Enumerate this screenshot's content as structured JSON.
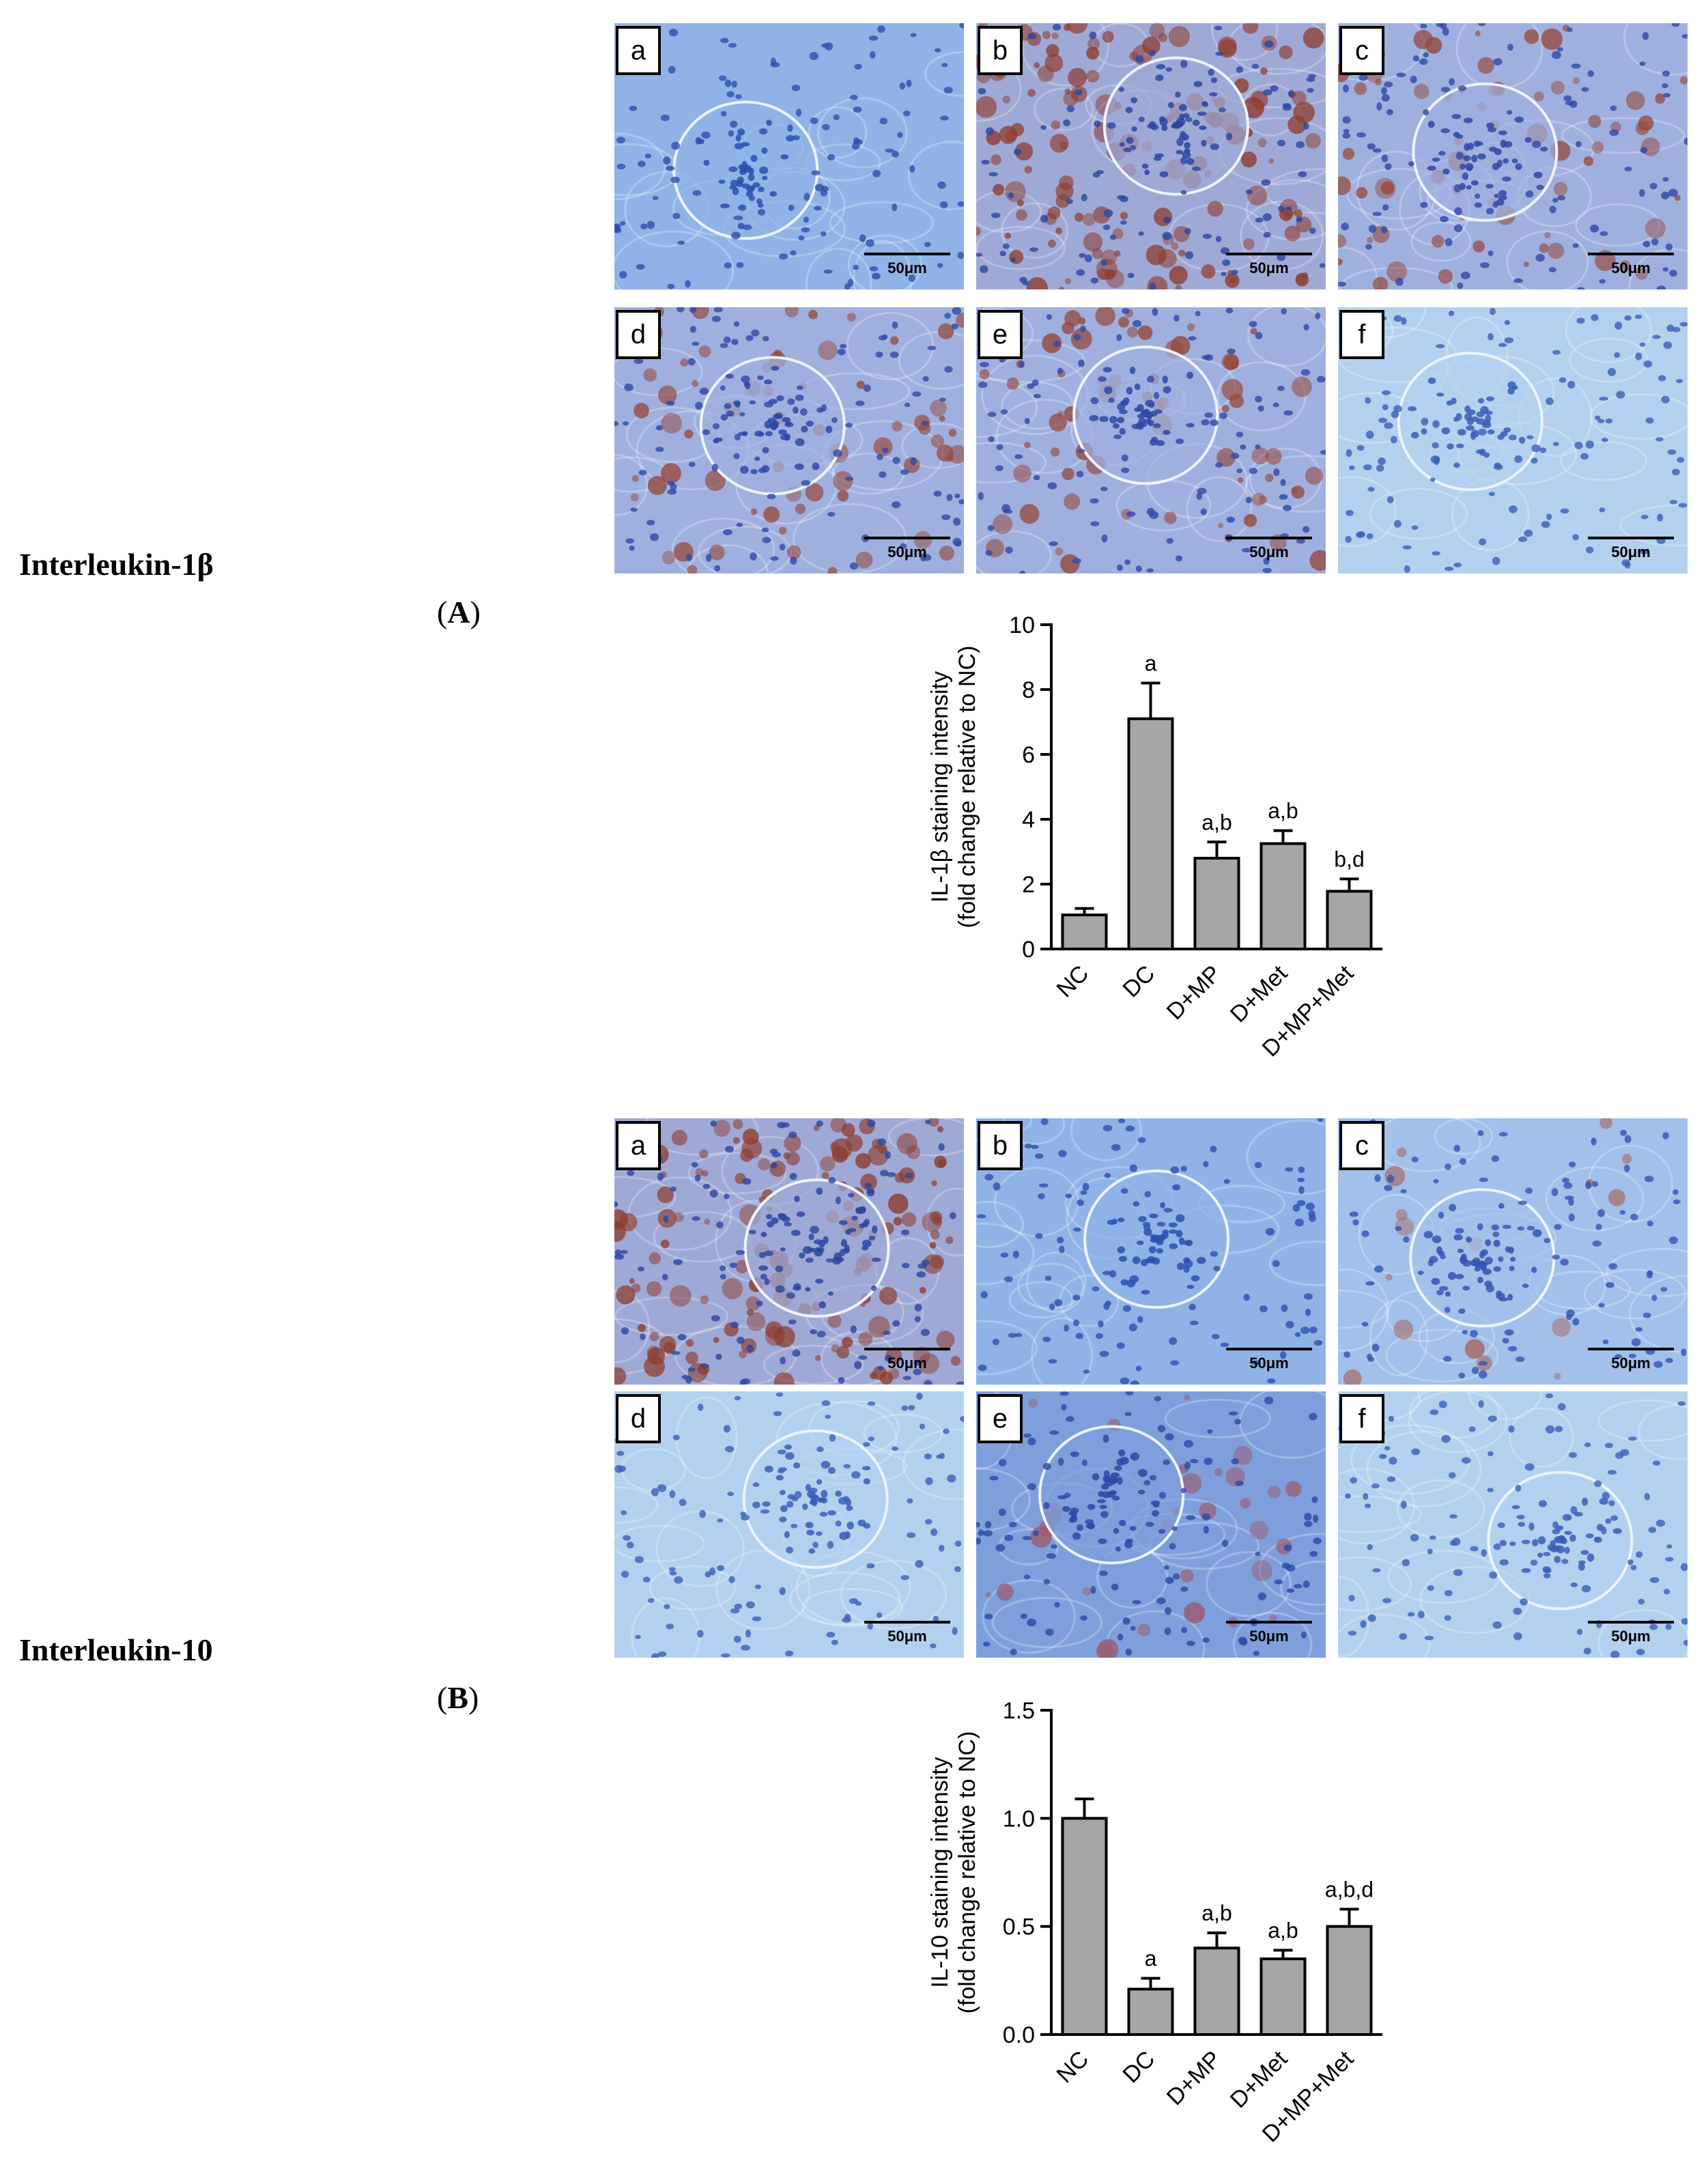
{
  "figures": [
    {
      "row_title": "Interleukin-1β",
      "panel_label_letter": "A",
      "micrographs": [
        {
          "letter": "a",
          "scale": "50μm",
          "tone": "blue"
        },
        {
          "letter": "b",
          "scale": "50μm",
          "tone": "brown-heavy"
        },
        {
          "letter": "c",
          "scale": "50μm",
          "tone": "brown-medium"
        },
        {
          "letter": "d",
          "scale": "50μm",
          "tone": "brown-medium"
        },
        {
          "letter": "e",
          "scale": "50μm",
          "tone": "brown-medium"
        },
        {
          "letter": "f",
          "scale": "50μm",
          "tone": "pale-blue"
        }
      ],
      "chart_data": {
        "type": "bar",
        "ylabel_line1": "IL-1β staining intensity",
        "ylabel_line2": "(fold change relative to NC)",
        "categories": [
          "NC",
          "DC",
          "D+MP",
          "D+Met",
          "D+MP+Met"
        ],
        "values": [
          1.05,
          7.1,
          2.8,
          3.25,
          1.78
        ],
        "errors": [
          0.2,
          1.1,
          0.5,
          0.4,
          0.38
        ],
        "annotations": [
          "",
          "a",
          "a,b",
          "a,b",
          "b,d"
        ],
        "ylim": [
          0,
          10
        ],
        "yticks": [
          "0",
          "2",
          "4",
          "6",
          "8",
          "10"
        ],
        "ytick_values": [
          0,
          2,
          4,
          6,
          8,
          10
        ],
        "bar_color": "#a6a6a6"
      }
    },
    {
      "row_title": "Interleukin-10",
      "panel_label_letter": "B",
      "micrographs": [
        {
          "letter": "a",
          "scale": "50μm",
          "tone": "brown-heavy"
        },
        {
          "letter": "b",
          "scale": "50μm",
          "tone": "blue"
        },
        {
          "letter": "c",
          "scale": "50μm",
          "tone": "blue-light"
        },
        {
          "letter": "d",
          "scale": "50μm",
          "tone": "pale-blue"
        },
        {
          "letter": "e",
          "scale": "50μm",
          "tone": "blue-purple"
        },
        {
          "letter": "f",
          "scale": "50μm",
          "tone": "pale-blue"
        }
      ],
      "chart_data": {
        "type": "bar",
        "ylabel_line1": "IL-10 staining intensity",
        "ylabel_line2": "(fold change relative to NC)",
        "categories": [
          "NC",
          "DC",
          "D+MP",
          "D+Met",
          "D+MP+Met"
        ],
        "values": [
          1.0,
          0.21,
          0.4,
          0.35,
          0.5
        ],
        "errors": [
          0.09,
          0.05,
          0.07,
          0.04,
          0.08
        ],
        "annotations": [
          "",
          "a",
          "a,b",
          "a,b",
          "a,b,d"
        ],
        "ylim": [
          0,
          1.5
        ],
        "yticks": [
          "0.0",
          "0.5",
          "1.0",
          "1.5"
        ],
        "ytick_values": [
          0,
          0.5,
          1.0,
          1.5
        ],
        "bar_color": "#a6a6a6"
      }
    }
  ]
}
